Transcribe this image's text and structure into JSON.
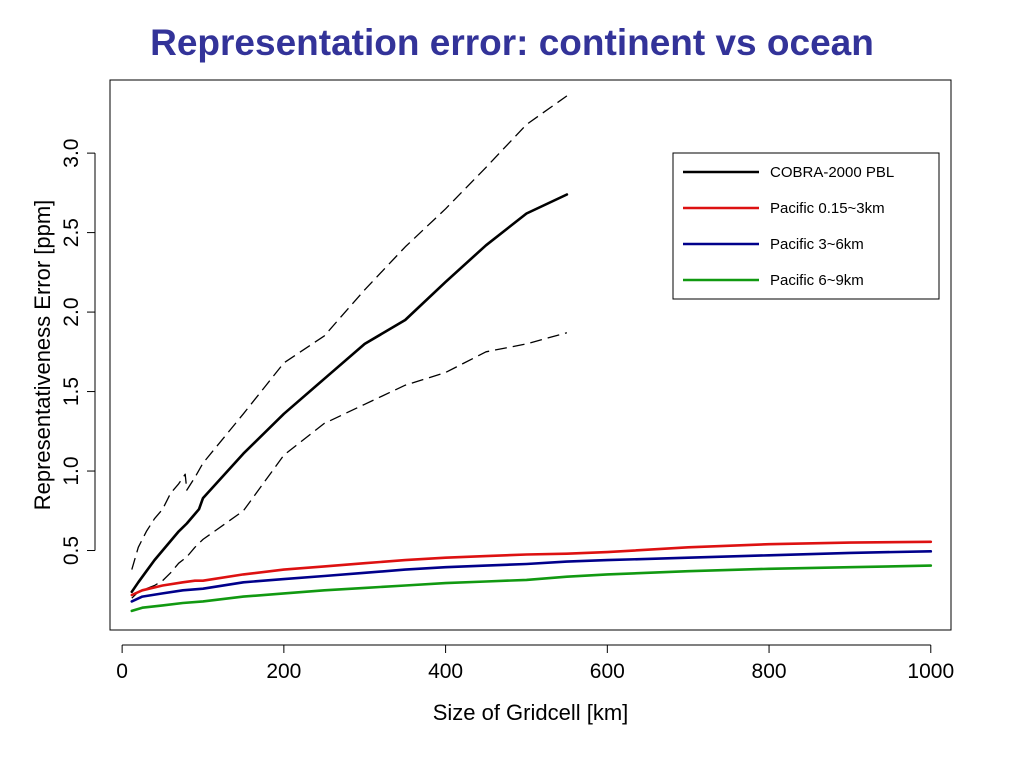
{
  "title": "Representation error: continent vs ocean",
  "chart_data": {
    "type": "line",
    "xlabel": "Size of Gridcell [km]",
    "ylabel": "Representativeness Error [ppm]",
    "xlim": [
      -15,
      1025
    ],
    "ylim": [
      0.0,
      3.46
    ],
    "x_ticks": [
      0,
      200,
      400,
      600,
      800,
      1000
    ],
    "x_tick_labels": [
      "0",
      "200",
      "400",
      "600",
      "800",
      "1000"
    ],
    "y_ticks": [
      0.5,
      1.0,
      1.5,
      2.0,
      2.5,
      3.0
    ],
    "y_tick_labels": [
      "0.5",
      "1.0",
      "1.5",
      "2.0",
      "2.5",
      "3.0"
    ],
    "grid": false,
    "legend_position": "top-right",
    "series": [
      {
        "name": "COBRA-2000 PBL",
        "color": "#000000",
        "style": "solid",
        "in_legend": true,
        "x": [
          12,
          20,
          30,
          40,
          50,
          60,
          70,
          80,
          90,
          95,
          100,
          150,
          200,
          250,
          300,
          350,
          400,
          450,
          500,
          550
        ],
        "y": [
          0.24,
          0.3,
          0.37,
          0.44,
          0.5,
          0.56,
          0.62,
          0.67,
          0.73,
          0.76,
          0.83,
          1.11,
          1.36,
          1.58,
          1.8,
          1.95,
          2.19,
          2.42,
          2.62,
          2.74
        ]
      },
      {
        "name": "COBRA-2000 PBL upper bound",
        "color": "#000000",
        "style": "dashed",
        "in_legend": false,
        "x": [
          12,
          20,
          30,
          40,
          50,
          60,
          70,
          78,
          80,
          90,
          100,
          150,
          200,
          250,
          300,
          350,
          400,
          450,
          500,
          550
        ],
        "y": [
          0.38,
          0.52,
          0.62,
          0.7,
          0.76,
          0.86,
          0.92,
          0.98,
          0.88,
          0.96,
          1.05,
          1.36,
          1.68,
          1.85,
          2.14,
          2.41,
          2.65,
          2.91,
          3.18,
          3.36
        ]
      },
      {
        "name": "COBRA-2000 PBL lower bound",
        "color": "#000000",
        "style": "dashed",
        "in_legend": false,
        "x": [
          12,
          20,
          30,
          40,
          50,
          60,
          70,
          80,
          90,
          100,
          150,
          200,
          250,
          300,
          350,
          400,
          450,
          500,
          550
        ],
        "y": [
          0.2,
          0.24,
          0.26,
          0.28,
          0.31,
          0.36,
          0.42,
          0.46,
          0.52,
          0.57,
          0.75,
          1.1,
          1.3,
          1.42,
          1.54,
          1.62,
          1.75,
          1.8,
          1.87
        ]
      },
      {
        "name": "Pacific 0.15~3km",
        "color": "#dd1111",
        "style": "solid",
        "in_legend": true,
        "x": [
          12,
          25,
          50,
          75,
          90,
          100,
          150,
          200,
          250,
          300,
          350,
          400,
          450,
          500,
          550,
          600,
          700,
          800,
          900,
          1000
        ],
        "y": [
          0.22,
          0.25,
          0.28,
          0.3,
          0.31,
          0.31,
          0.35,
          0.38,
          0.4,
          0.42,
          0.44,
          0.455,
          0.465,
          0.475,
          0.48,
          0.49,
          0.52,
          0.54,
          0.55,
          0.555
        ]
      },
      {
        "name": "Pacific 3~6km",
        "color": "#00008b",
        "style": "solid",
        "in_legend": true,
        "x": [
          12,
          25,
          50,
          75,
          100,
          150,
          200,
          250,
          300,
          350,
          400,
          450,
          500,
          550,
          600,
          700,
          800,
          900,
          1000
        ],
        "y": [
          0.18,
          0.21,
          0.23,
          0.25,
          0.26,
          0.3,
          0.32,
          0.34,
          0.36,
          0.38,
          0.395,
          0.405,
          0.415,
          0.43,
          0.44,
          0.455,
          0.47,
          0.485,
          0.495
        ]
      },
      {
        "name": "Pacific 6~9km",
        "color": "#119911",
        "style": "solid",
        "in_legend": true,
        "x": [
          12,
          25,
          50,
          75,
          100,
          150,
          200,
          250,
          300,
          350,
          400,
          450,
          500,
          550,
          600,
          700,
          800,
          900,
          1000
        ],
        "y": [
          0.12,
          0.14,
          0.155,
          0.17,
          0.18,
          0.21,
          0.23,
          0.25,
          0.265,
          0.28,
          0.295,
          0.305,
          0.315,
          0.335,
          0.35,
          0.37,
          0.385,
          0.395,
          0.405
        ]
      }
    ]
  }
}
